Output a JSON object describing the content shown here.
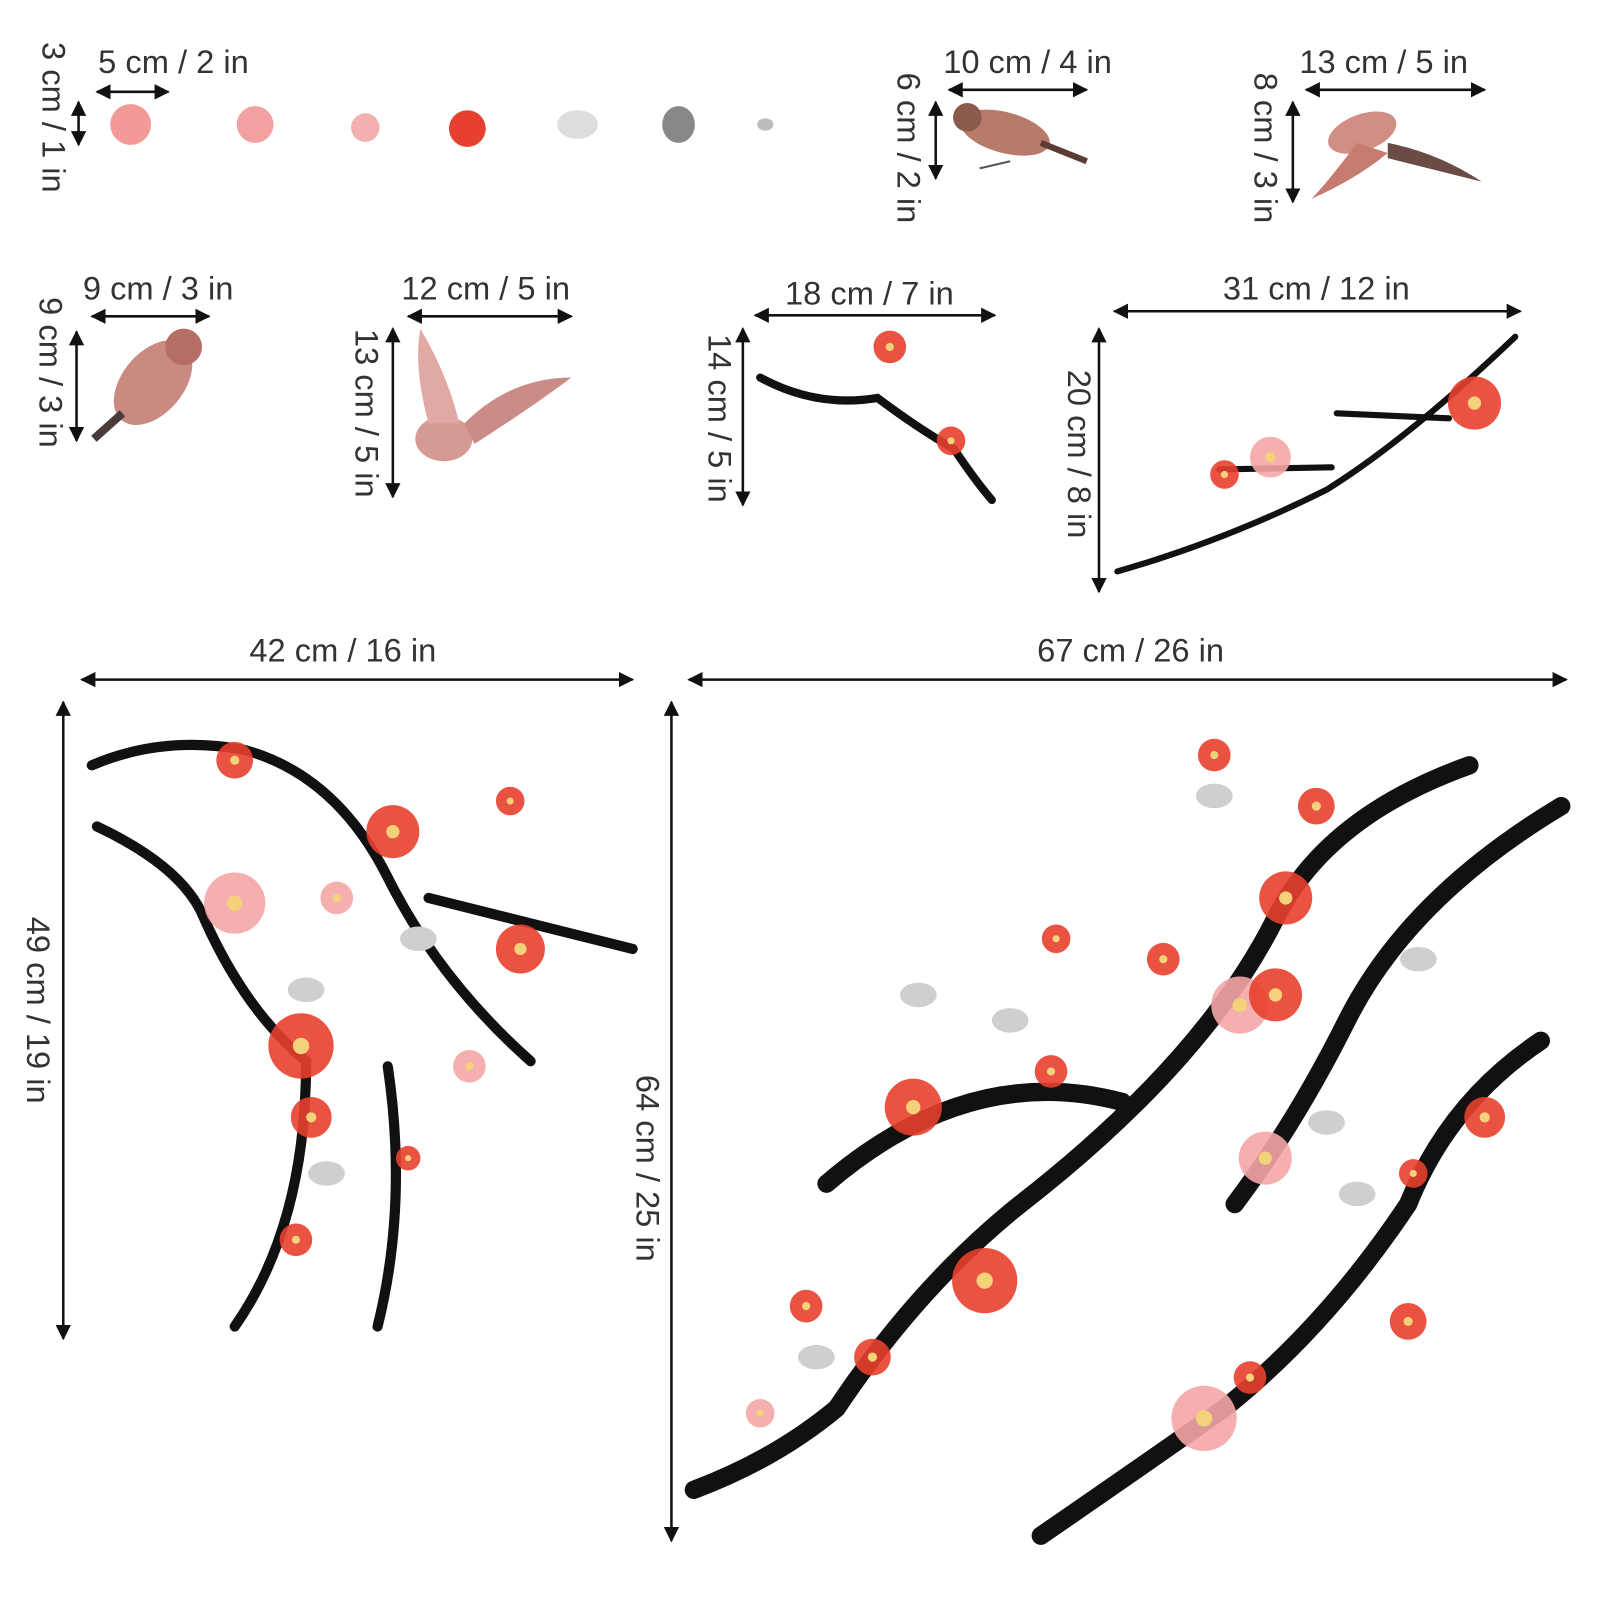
{
  "items": [
    {
      "width": "5 cm / 2 in",
      "height": "3 cm / 1 in"
    },
    {
      "width": "10 cm / 4 in",
      "height": "6 cm / 2 in"
    },
    {
      "width": "13 cm / 5 in",
      "height": "8 cm / 3 in"
    },
    {
      "width": "9 cm / 3 in",
      "height": "9 cm / 3 in"
    },
    {
      "width": "12 cm / 5 in",
      "height": "13 cm / 5 in"
    },
    {
      "width": "18 cm / 7 in",
      "height": "14 cm / 5 in"
    },
    {
      "width": "31 cm / 12 in",
      "height": "20 cm / 8 in"
    },
    {
      "width": "42 cm / 16 in",
      "height": "49 cm / 19 in"
    },
    {
      "width": "67 cm / 26 in",
      "height": "64 cm / 25 in"
    }
  ]
}
